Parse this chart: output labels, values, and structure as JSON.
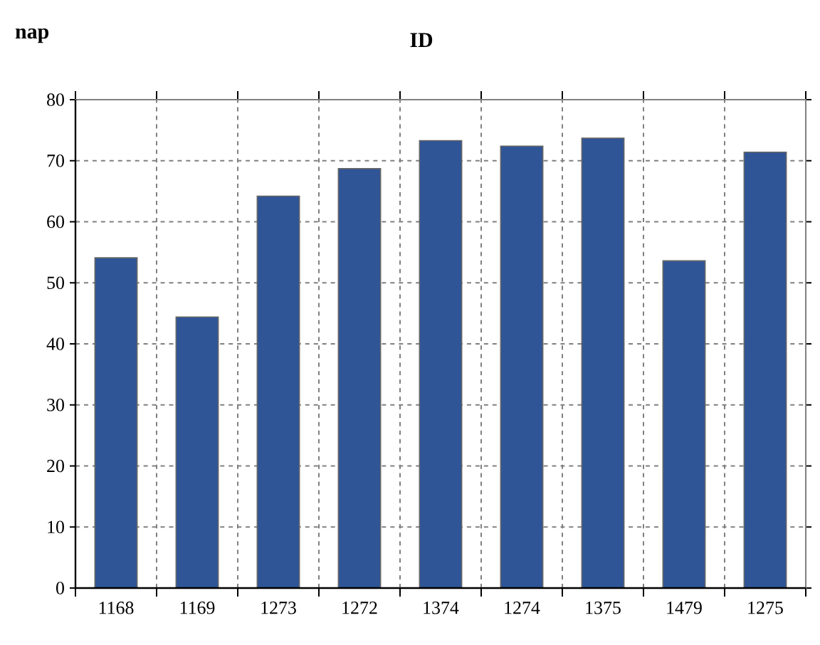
{
  "chart_data": {
    "type": "bar",
    "title": "ID",
    "ylabel": "nap",
    "categories": [
      "1168",
      "1169",
      "1273",
      "1272",
      "1374",
      "1274",
      "1375",
      "1479",
      "1275"
    ],
    "values": [
      54.1,
      44.4,
      64.2,
      68.7,
      73.3,
      72.4,
      73.7,
      53.6,
      71.4
    ],
    "color": "#2f5597",
    "ylim": [
      0,
      80
    ],
    "yticks": [
      0,
      10,
      20,
      30,
      40,
      50,
      60,
      70,
      80
    ],
    "grid": true
  }
}
